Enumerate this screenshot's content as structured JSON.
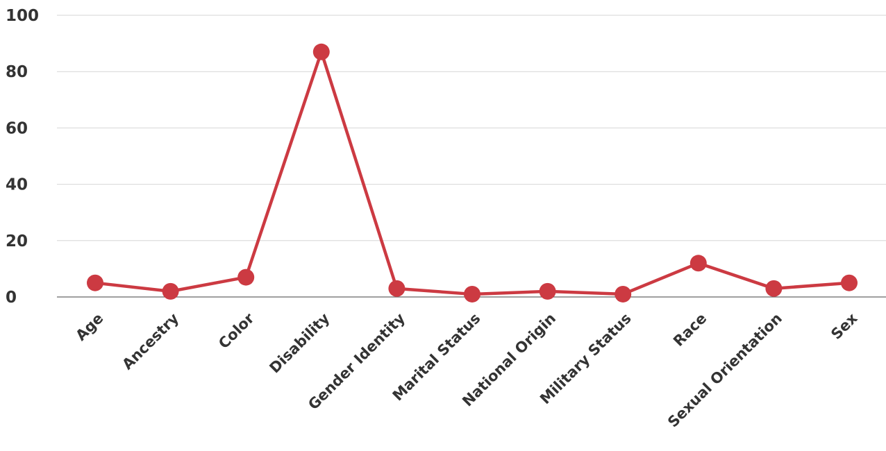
{
  "chart_data": {
    "type": "line",
    "title": "",
    "xlabel": "",
    "ylabel": "",
    "categories": [
      "Age",
      "Ancestry",
      "Color",
      "Disability",
      "Gender Identity",
      "Marital Status",
      "National Origin",
      "Military Status",
      "Race",
      "Sexual Orientation",
      "Sex"
    ],
    "series": [
      {
        "values": [
          5,
          2,
          7,
          87,
          3,
          1,
          2,
          1,
          12,
          3,
          5
        ],
        "color": "#cc3a42"
      }
    ],
    "ylim": [
      0,
      100
    ],
    "yticks": [
      0,
      20,
      40,
      60,
      80,
      100
    ],
    "ytick_labels": [
      "0",
      "20",
      "40",
      "60",
      "80",
      "100"
    ],
    "grid": true,
    "legend": "none"
  }
}
